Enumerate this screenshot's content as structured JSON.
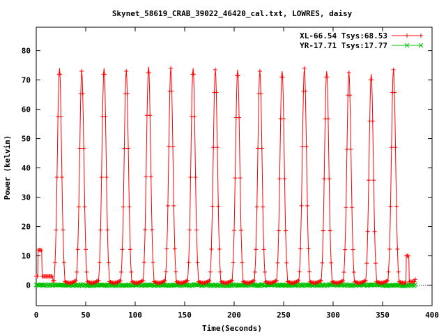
{
  "chart_data": {
    "type": "line",
    "title": "Skynet_58619_CRAB_39022_46420_cal.txt, LOWRES, daisy",
    "xlabel": "Time(Seconds)",
    "ylabel": "Power (kelvin)",
    "xlim": [
      0,
      400
    ],
    "ylim": [
      -7,
      88
    ],
    "xticks": [
      0,
      50,
      100,
      150,
      200,
      250,
      300,
      350,
      400
    ],
    "yticks": [
      0,
      10,
      20,
      30,
      40,
      50,
      60,
      70,
      80
    ],
    "zero_axis": true,
    "grid": false,
    "legend_position": "top-right",
    "series": [
      {
        "name": "XL-66.54 Tsys:68.53",
        "color": "#ff0000",
        "marker": "plus",
        "peak_times": [
          23.5,
          46,
          68.5,
          91,
          113.5,
          136,
          158.5,
          181,
          203.5,
          226,
          248.5,
          271,
          293.5,
          316,
          338.5,
          361
        ],
        "peak_values": [
          74,
          73,
          74,
          73,
          74.5,
          74,
          74,
          73.5,
          73.5,
          73,
          73,
          74,
          73,
          72.5,
          72,
          73.5
        ],
        "peak_half_width": 5.5,
        "baseline_value": 2.2,
        "segments": [
          {
            "x_start": 0,
            "x_end": 2,
            "value": 3
          },
          {
            "x_start": 2,
            "x_end": 6,
            "value": 12
          },
          {
            "x_start": 6,
            "x_end": 17,
            "value": 3
          },
          {
            "x_start": 374,
            "x_end": 377,
            "value": 10
          },
          {
            "x_start": 377,
            "x_end": 383,
            "value": 1.2
          }
        ],
        "x_start": 0,
        "x_end": 383
      },
      {
        "name": "YR-17.71 Tsys:17.77",
        "color": "#00c000",
        "marker": "cross",
        "baseline_value": 0,
        "noise_amplitude": 0.5,
        "x_start": 0,
        "x_end": 383
      }
    ]
  }
}
